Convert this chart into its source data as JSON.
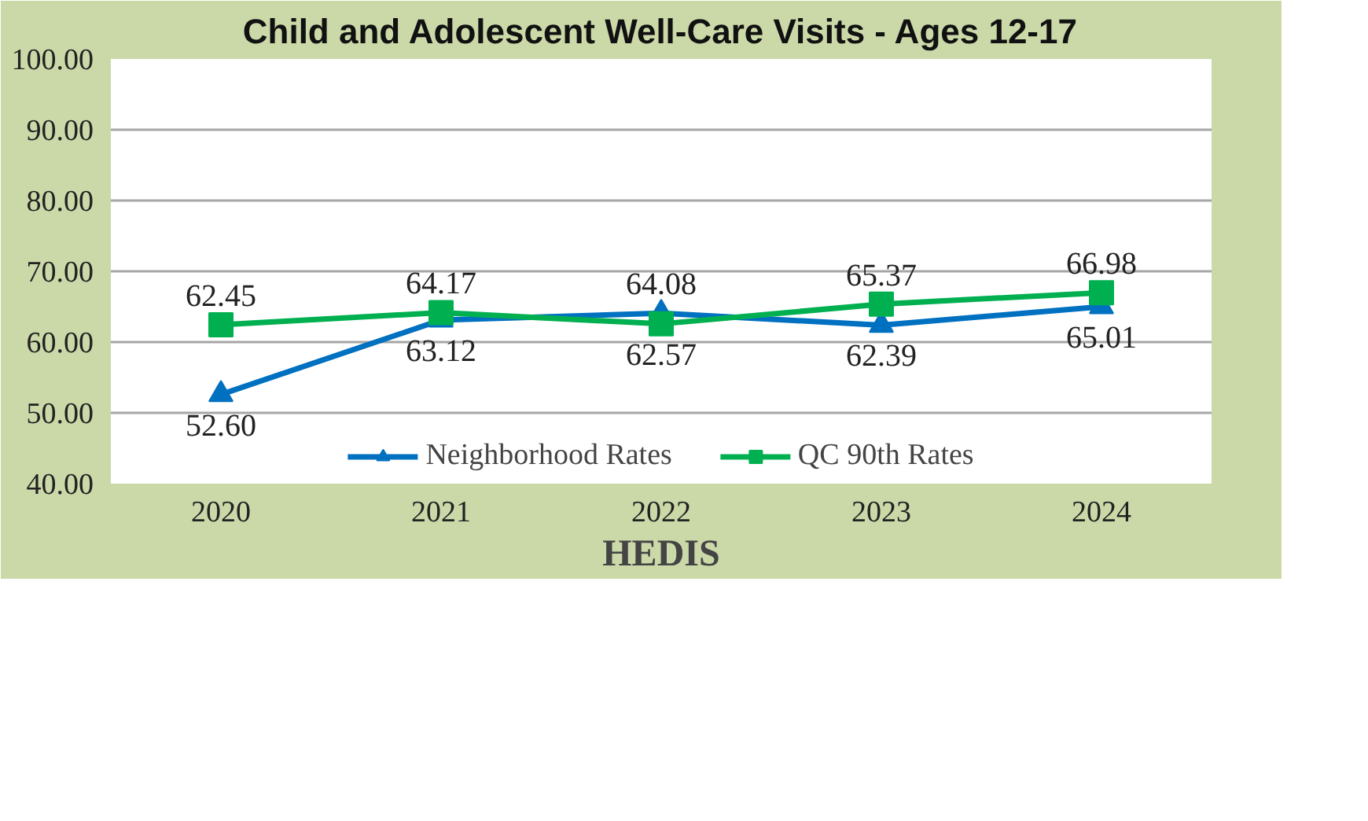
{
  "chart_data": {
    "type": "line",
    "title": "Child and Adolescent Well-Care Visits - Ages 12-17",
    "xlabel": "HEDIS",
    "categories": [
      "2020",
      "2021",
      "2022",
      "2023",
      "2024"
    ],
    "series": [
      {
        "name": "Neighborhood Rates",
        "color": "#0070c0",
        "marker": "triangle",
        "values": [
          52.6,
          63.12,
          64.08,
          62.39,
          65.01
        ],
        "value_labels": [
          "52.60",
          "63.12",
          "64.08",
          "62.39",
          "65.01"
        ]
      },
      {
        "name": "QC 90th Rates",
        "color": "#00b050",
        "marker": "square",
        "values": [
          62.45,
          64.17,
          62.57,
          65.37,
          66.98
        ],
        "value_labels": [
          "62.45",
          "64.17",
          "62.57",
          "65.37",
          "66.98"
        ]
      }
    ],
    "ylim": [
      40,
      100
    ],
    "yticks": [
      {
        "value": 40,
        "label": "40.00"
      },
      {
        "value": 50,
        "label": "50.00"
      },
      {
        "value": 60,
        "label": "60.00"
      },
      {
        "value": 70,
        "label": "70.00"
      },
      {
        "value": 80,
        "label": "80.00"
      },
      {
        "value": 90,
        "label": "90.00"
      },
      {
        "value": 100,
        "label": "100.00"
      }
    ],
    "grid": "y",
    "legend": "bottom",
    "data_labels": true,
    "line_style": "solid"
  }
}
